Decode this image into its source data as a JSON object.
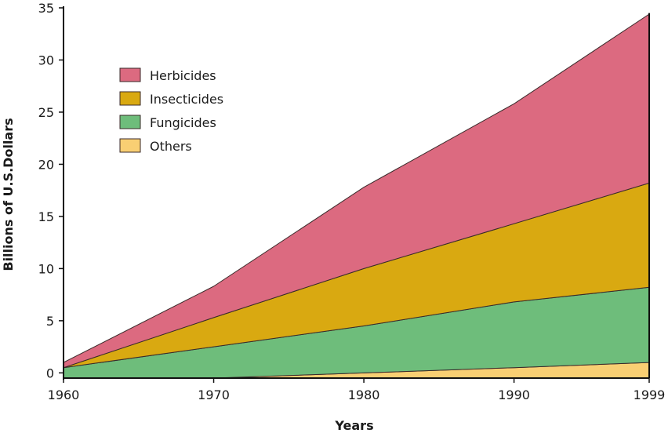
{
  "chart_data": {
    "type": "area",
    "stacked": true,
    "title": "",
    "xlabel": "Years",
    "ylabel": "Billions of U.S.Dollars",
    "xlim": [
      1960,
      1999
    ],
    "ylim": [
      -0.5,
      35
    ],
    "x_ticks": [
      1960,
      1970,
      1980,
      1990,
      1999
    ],
    "y_ticks": [
      0,
      5,
      10,
      15,
      20,
      25,
      30,
      35
    ],
    "legend_position": "top-left",
    "series": [
      {
        "name": "Others",
        "color": "#f9cf73",
        "x": [
          1960,
          1970,
          1980,
          1990,
          1999
        ],
        "values": [
          -0.5,
          -0.5,
          0.0,
          0.5,
          1.0
        ]
      },
      {
        "name": "Fungicides",
        "color": "#6ebd7b",
        "x": [
          1960,
          1970,
          1980,
          1990,
          1999
        ],
        "values": [
          1.0,
          3.0,
          4.5,
          6.3,
          7.2
        ]
      },
      {
        "name": "Insecticides",
        "color": "#d9a911",
        "x": [
          1960,
          1970,
          1980,
          1990,
          1999
        ],
        "values": [
          0.0,
          2.8,
          5.5,
          7.5,
          10.0
        ]
      },
      {
        "name": "Herbicides",
        "color": "#dc6a80",
        "x": [
          1960,
          1970,
          1980,
          1990,
          1999
        ],
        "values": [
          0.5,
          3.0,
          7.8,
          11.5,
          16.2
        ]
      }
    ],
    "legend_order": [
      "Herbicides",
      "Insecticides",
      "Fungicides",
      "Others"
    ]
  }
}
